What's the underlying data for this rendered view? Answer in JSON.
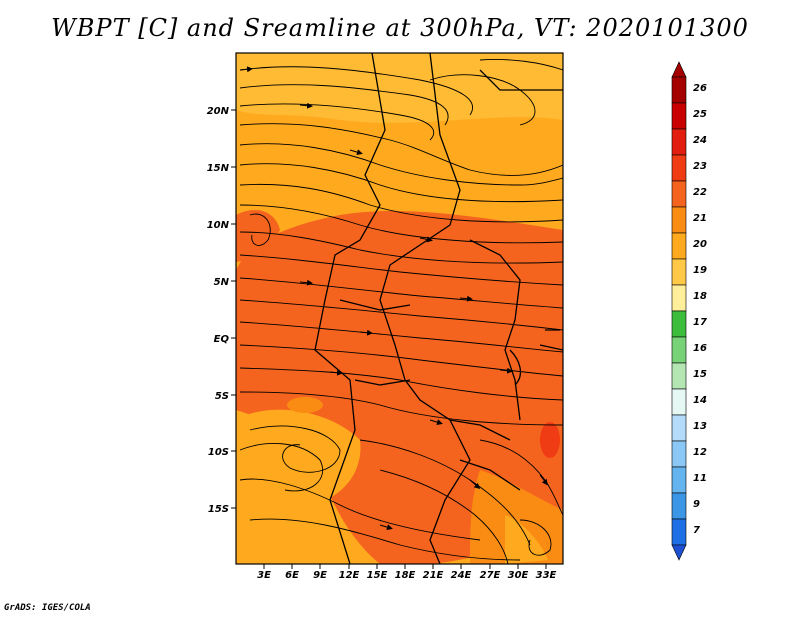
{
  "title": "WBPT [C] and Sreamline at 300hPa, VT: 2020101300",
  "credit": "GrADS: IGES/COLA",
  "map": {
    "variable": "Wet-bulb potential temperature",
    "units": "C",
    "level": "300hPa",
    "valid_time": "2020101300",
    "lat_ticks": [
      "20N",
      "15N",
      "10N",
      "5N",
      "EQ",
      "5S",
      "10S",
      "15S"
    ],
    "lon_ticks": [
      "3E",
      "6E",
      "9E",
      "12E",
      "15E",
      "18E",
      "21E",
      "24E",
      "27E",
      "30E",
      "33E"
    ]
  },
  "colorbar": {
    "levels": [
      {
        "label": "26",
        "color": "#a50000"
      },
      {
        "label": "25",
        "color": "#c80000"
      },
      {
        "label": "24",
        "color": "#e11e0f"
      },
      {
        "label": "23",
        "color": "#f03c14"
      },
      {
        "label": "22",
        "color": "#f5641e"
      },
      {
        "label": "21",
        "color": "#fa8c14"
      },
      {
        "label": "20",
        "color": "#ffaa1e"
      },
      {
        "label": "19",
        "color": "#ffc846"
      },
      {
        "label": "18",
        "color": "#ffee9a"
      },
      {
        "label": "17",
        "color": "#3cbe3c"
      },
      {
        "label": "16",
        "color": "#78d278"
      },
      {
        "label": "15",
        "color": "#b4e6b4"
      },
      {
        "label": "14",
        "color": "#e6f8f4"
      },
      {
        "label": "13",
        "color": "#b4dcfa"
      },
      {
        "label": "12",
        "color": "#8cc8f5"
      },
      {
        "label": "11",
        "color": "#64b4f0"
      },
      {
        "label": "9",
        "color": "#3c96e6"
      },
      {
        "label": "7",
        "color": "#1e6ee6"
      }
    ],
    "below_color": "#1e50d2"
  }
}
